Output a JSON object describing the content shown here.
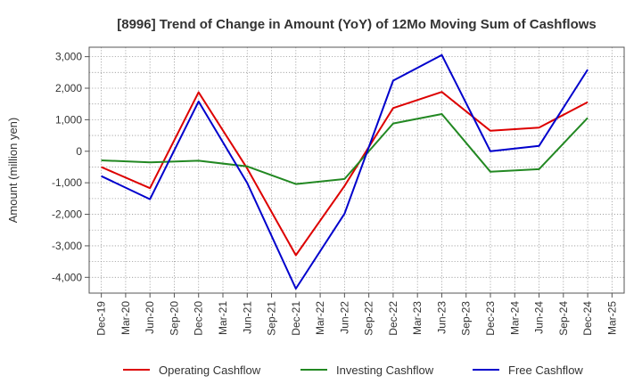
{
  "chart_data": {
    "type": "line",
    "title": "[8996]  Trend of Change in Amount (YoY) of 12Mo Moving Sum of Cashflows",
    "xlabel": "",
    "ylabel": "Amount (million yen)",
    "categories": [
      "Dec-19",
      "Mar-20",
      "Jun-20",
      "Sep-20",
      "Dec-20",
      "Mar-21",
      "Jun-21",
      "Sep-21",
      "Dec-21",
      "Mar-22",
      "Jun-22",
      "Sep-22",
      "Dec-22",
      "Mar-23",
      "Jun-23",
      "Sep-23",
      "Dec-23",
      "Mar-24",
      "Jun-24",
      "Sep-24",
      "Dec-24",
      "Mar-25"
    ],
    "ylim": [
      -4500,
      3300
    ],
    "yticks": [
      3000,
      2000,
      1000,
      0,
      -1000,
      -2000,
      -3000,
      -4000
    ],
    "ytick_labels": [
      "3,000",
      "2,000",
      "1,000",
      "0",
      "-1,000",
      "-2,000",
      "-3,000",
      "-4,000"
    ],
    "grid": true,
    "legend_position": "bottom",
    "series": [
      {
        "name": "Operating Cashflow",
        "color": "#dd0000",
        "points": [
          [
            0,
            -500
          ],
          [
            2,
            -1170
          ],
          [
            4,
            1870
          ],
          [
            6,
            -550
          ],
          [
            8,
            -3300
          ],
          [
            10,
            -1100
          ],
          [
            12,
            1370
          ],
          [
            14,
            1880
          ],
          [
            16,
            650
          ],
          [
            18,
            750
          ],
          [
            20,
            1560
          ]
        ]
      },
      {
        "name": "Investing Cashflow",
        "color": "#228822",
        "points": [
          [
            0,
            -290
          ],
          [
            2,
            -350
          ],
          [
            4,
            -300
          ],
          [
            6,
            -480
          ],
          [
            8,
            -1040
          ],
          [
            10,
            -880
          ],
          [
            12,
            880
          ],
          [
            14,
            1180
          ],
          [
            16,
            -650
          ],
          [
            18,
            -570
          ],
          [
            20,
            1060
          ]
        ]
      },
      {
        "name": "Free Cashflow",
        "color": "#0000cc",
        "points": [
          [
            0,
            -790
          ],
          [
            2,
            -1520
          ],
          [
            4,
            1580
          ],
          [
            6,
            -1010
          ],
          [
            8,
            -4360
          ],
          [
            10,
            -1980
          ],
          [
            12,
            2240
          ],
          [
            14,
            3050
          ],
          [
            16,
            0
          ],
          [
            18,
            170
          ],
          [
            20,
            2590
          ]
        ]
      }
    ]
  }
}
